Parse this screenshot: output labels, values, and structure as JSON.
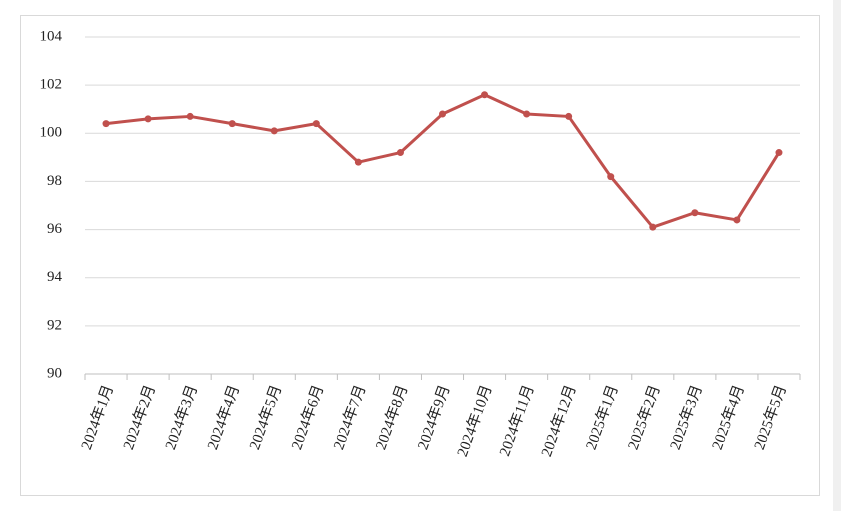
{
  "chart_data": {
    "type": "line",
    "categories": [
      "2024年1月",
      "2024年2月",
      "2024年3月",
      "2024年4月",
      "2024年5月",
      "2024年6月",
      "2024年7月",
      "2024年8月",
      "2024年9月",
      "2024年10月",
      "2024年11月",
      "2024年12月",
      "2025年1月",
      "2025年2月",
      "2025年3月",
      "2025年4月",
      "2025年5月"
    ],
    "series": [
      {
        "color": "#c0504d",
        "values": [
          100.4,
          100.6,
          100.7,
          100.4,
          100.1,
          100.4,
          98.8,
          99.2,
          100.8,
          101.6,
          100.8,
          100.7,
          98.2,
          96.1,
          96.7,
          96.4,
          99.2
        ]
      }
    ],
    "ylim": [
      90,
      104
    ],
    "yticks": [
      90,
      92,
      94,
      96,
      98,
      100,
      102,
      104
    ],
    "grid": true
  }
}
